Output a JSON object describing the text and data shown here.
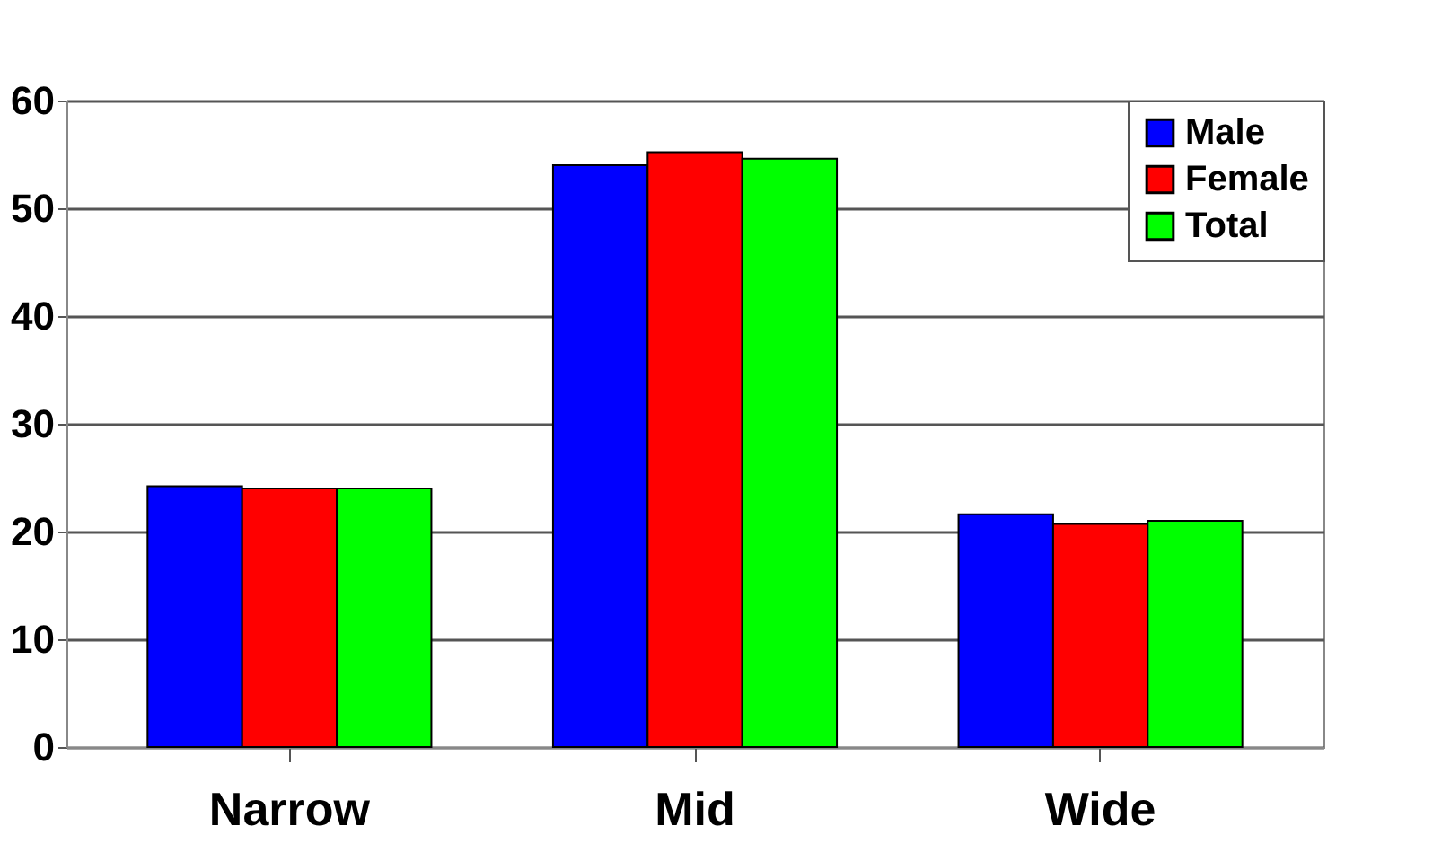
{
  "chart_data": {
    "type": "bar",
    "categories": [
      "Narrow",
      "Mid",
      "Wide"
    ],
    "series": [
      {
        "name": "Male",
        "color": "#0000ff",
        "values": [
          24.2,
          54,
          21.6
        ]
      },
      {
        "name": "Female",
        "color": "#ff0000",
        "values": [
          24,
          55.2,
          20.7
        ]
      },
      {
        "name": "Total",
        "color": "#00ff00",
        "values": [
          24,
          54.6,
          21
        ]
      }
    ],
    "ylim": [
      0,
      60
    ],
    "yticks": [
      0,
      10,
      20,
      30,
      40,
      50,
      60
    ],
    "grid": "y",
    "legend": "top right"
  }
}
